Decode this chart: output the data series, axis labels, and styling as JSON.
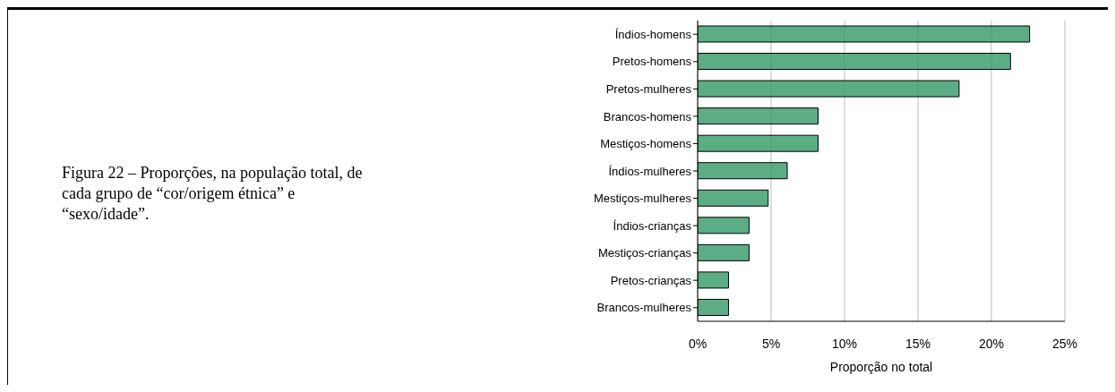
{
  "chart_data": {
    "type": "bar",
    "orientation": "horizontal",
    "title": "Figura 22 – Proporções, na população total, de cada grupo de “cor/origem étnica” e “sexo/idade”.",
    "xlabel": "Proporção no total",
    "categories": [
      "Índios-homens",
      "Pretos-homens",
      "Pretos-mulheres",
      "Brancos-homens",
      "Mestiços-homens",
      "Índios-mulheres",
      "Mestiços-mulheres",
      "Índios-crianças",
      "Mestiços-crianças",
      "Pretos-crianças",
      "Brancos-mulheres"
    ],
    "values": [
      22.6,
      21.3,
      17.8,
      8.2,
      8.2,
      6.1,
      4.8,
      3.5,
      3.5,
      2.1,
      2.1
    ],
    "color": "#339966",
    "xlim": [
      0,
      25
    ],
    "xticks": [
      {
        "value": 0,
        "label": "0%"
      },
      {
        "value": 5,
        "label": "5%"
      },
      {
        "value": 10,
        "label": "10%"
      },
      {
        "value": 15,
        "label": "15%"
      },
      {
        "value": 20,
        "label": "20%"
      },
      {
        "value": 25,
        "label": "25%"
      }
    ],
    "grid": "x",
    "legend": false
  }
}
